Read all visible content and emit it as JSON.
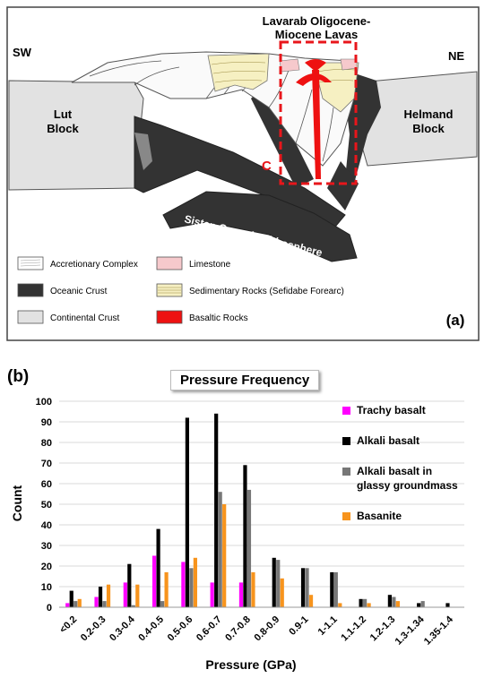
{
  "panel_a": {
    "orientation_left": "SW",
    "orientation_right": "NE",
    "title_line1": "Lavarab Oligocene-",
    "title_line2": "Miocene Lavas",
    "lut_line1": "Lut",
    "lut_line2": "Block",
    "helmand_line1": "Helmand",
    "helmand_line2": "Block",
    "sistan_label": "Sistan Oceanic Lithosphere",
    "c_marker": "C",
    "panel_label": "(a)",
    "legend": [
      {
        "label": "Accretionary Complex",
        "color": "#ffffff"
      },
      {
        "label": "Limestone",
        "color": "#f6c9cc"
      },
      {
        "label": "Oceanic Crust",
        "color": "#333333"
      },
      {
        "label": "Sedimentary Rocks (Sefidabe Forearc)",
        "color": "#f6f0c2"
      },
      {
        "label": "Continental Crust",
        "color": "#e2e2e2"
      },
      {
        "label": "Basaltic Rocks",
        "color": "#ee1111"
      }
    ]
  },
  "panel_b_label": "(b)",
  "chart_data": {
    "type": "bar",
    "title": "Pressure Frequency",
    "xlabel": "Pressure (GPa)",
    "ylabel": "Count",
    "ylim": [
      0,
      100
    ],
    "yticks": [
      0,
      10,
      20,
      30,
      40,
      50,
      60,
      70,
      80,
      90,
      100
    ],
    "grid": true,
    "legend_position": "right",
    "categories": [
      "<0.2",
      "0.2-0.3",
      "0.3-0.4",
      "0.4-0.5",
      "0.5-0.6",
      "0.6-0.7",
      "0.7-0.8",
      "0.8-0.9",
      "0.9-1",
      "1-1.1",
      "1.1-1.2",
      "1.2-1.3",
      "1.3-1.34",
      "1.35-1.4"
    ],
    "series": [
      {
        "name": "Trachy basalt",
        "color": "#ff00ff",
        "values": [
          2,
          5,
          12,
          25,
          22,
          12,
          12,
          0,
          0,
          0,
          0,
          0,
          0,
          0
        ]
      },
      {
        "name": "Alkali basalt",
        "color": "#000000",
        "values": [
          8,
          10,
          21,
          38,
          92,
          94,
          69,
          24,
          19,
          17,
          4,
          6,
          2,
          2
        ]
      },
      {
        "name": "Alkali basalt in glassy groundmass",
        "color": "#777777",
        "values": [
          3,
          3,
          1,
          3,
          19,
          56,
          57,
          23,
          19,
          17,
          4,
          5,
          3,
          0
        ]
      },
      {
        "name": "Basanite",
        "color": "#f7941d",
        "values": [
          4,
          11,
          11,
          17,
          24,
          50,
          17,
          14,
          6,
          2,
          2,
          3,
          0,
          0
        ]
      }
    ]
  }
}
